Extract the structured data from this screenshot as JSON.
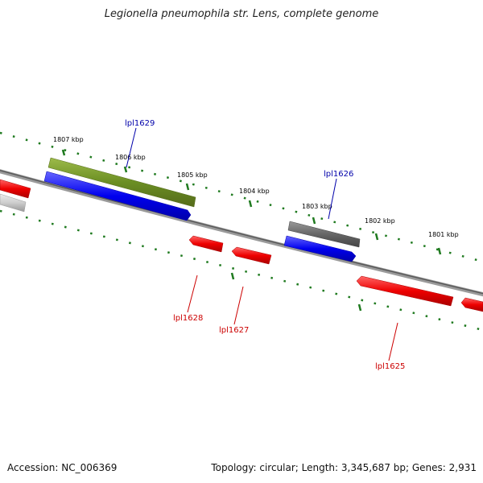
{
  "title": "Legionella pneumophila str. Lens, complete genome",
  "footer": {
    "accession": "Accession: NC_006369",
    "summary": "Topology: circular; Length: 3,345,687 bp; Genes: 2,931"
  },
  "ticks": [
    "1807 kbp",
    "1806 kbp",
    "1805 kbp",
    "1804 kbp",
    "1803 kbp",
    "1802 kbp",
    "1801 kbp"
  ],
  "genes": {
    "lpl1629": "lpl1629",
    "lpl1626": "lpl1626",
    "lpl1628": "lpl1628",
    "lpl1627": "lpl1627",
    "lpl1625": "lpl1625"
  },
  "colors": {
    "backbone": "#808080",
    "tick": "#1f7a1f",
    "forward_gene": "#0000ee",
    "reverse_gene": "#ee0000",
    "olive_feature": "#6b8e23",
    "gray_feature": "#666666",
    "forward_label": "#0000aa",
    "reverse_label": "#cc0000"
  }
}
